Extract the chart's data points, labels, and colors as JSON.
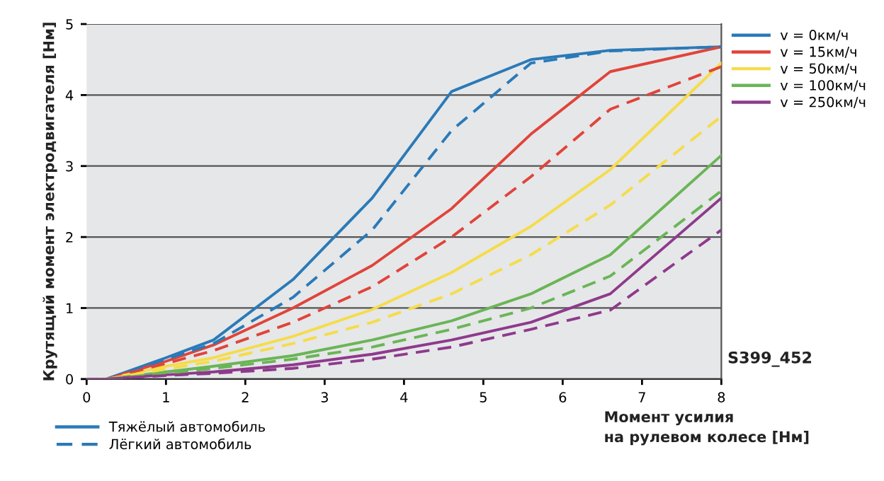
{
  "chart_data": {
    "type": "line",
    "xlabel": "Момент усилия\nна рулевом колесе [Нм]",
    "ylabel": "Крутящий момент электродвигателя [Нм]",
    "xlim": [
      0,
      8
    ],
    "xticks": [
      0,
      1,
      2,
      3,
      4,
      5,
      6,
      7,
      8
    ],
    "ylim": [
      0,
      5
    ],
    "yticks": [
      0,
      1,
      2,
      3,
      4,
      5
    ],
    "grid": "y",
    "legend": "top right",
    "marker": "none",
    "x": [
      0,
      0.25,
      1,
      1.6,
      2.6,
      3.6,
      4.6,
      5.6,
      6.6,
      8
    ],
    "series": [
      {
        "name": "v = 0км/ч",
        "color": "#2a7ab8",
        "line_style": "solid",
        "values": [
          0,
          0,
          0.3,
          0.55,
          1.4,
          2.55,
          4.05,
          4.5,
          4.63,
          4.68
        ]
      },
      {
        "name": "v = 15км/ч",
        "color": "#e0443a",
        "line_style": "solid",
        "values": [
          0,
          0,
          0.25,
          0.48,
          1.0,
          1.6,
          2.4,
          3.45,
          4.33,
          4.68
        ]
      },
      {
        "name": "v = 50км/ч",
        "color": "#f5dc4a",
        "line_style": "solid",
        "values": [
          0,
          0,
          0.18,
          0.3,
          0.6,
          0.98,
          1.5,
          2.15,
          2.95,
          4.45
        ]
      },
      {
        "name": "v = 100км/ч",
        "color": "#6ab556",
        "line_style": "solid",
        "values": [
          0,
          0,
          0.1,
          0.18,
          0.33,
          0.55,
          0.82,
          1.2,
          1.75,
          3.15
        ]
      },
      {
        "name": "v = 250км/ч",
        "color": "#8e3a8c",
        "line_style": "solid",
        "values": [
          0,
          0,
          0.06,
          0.1,
          0.2,
          0.35,
          0.55,
          0.8,
          1.2,
          2.55
        ]
      },
      {
        "color": "#2a7ab8",
        "line_style": "dashed",
        "values": [
          0,
          0,
          0.28,
          0.5,
          1.15,
          2.1,
          3.5,
          4.45,
          4.62,
          4.68
        ]
      },
      {
        "color": "#e0443a",
        "line_style": "dashed",
        "values": [
          0,
          0,
          0.22,
          0.4,
          0.8,
          1.3,
          2.0,
          2.85,
          3.8,
          4.4
        ]
      },
      {
        "color": "#f5dc4a",
        "line_style": "dashed",
        "values": [
          0,
          0,
          0.14,
          0.25,
          0.5,
          0.8,
          1.2,
          1.75,
          2.45,
          3.7
        ]
      },
      {
        "color": "#6ab556",
        "line_style": "dashed",
        "values": [
          0,
          0,
          0.08,
          0.15,
          0.28,
          0.45,
          0.7,
          1.0,
          1.45,
          2.65
        ]
      },
      {
        "color": "#8e3a8c",
        "line_style": "dashed",
        "values": [
          0,
          0,
          0.05,
          0.08,
          0.15,
          0.28,
          0.45,
          0.7,
          0.97,
          2.1
        ]
      }
    ],
    "annotations": [
      "Тяжёлый автомобиль",
      "Лёгкий автомобиль",
      "S399_452"
    ]
  }
}
